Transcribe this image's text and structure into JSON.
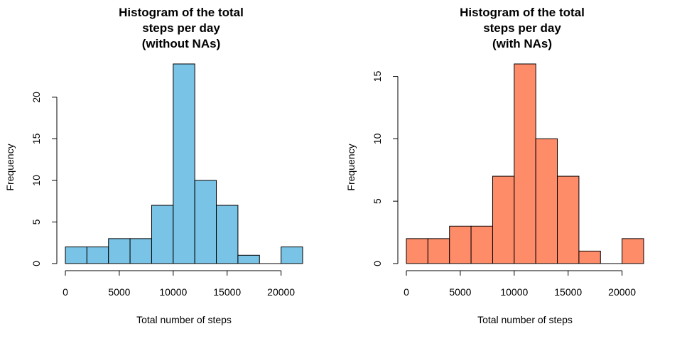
{
  "chart_data": [
    {
      "type": "bar",
      "subtype": "histogram",
      "title_lines": [
        "Histogram of the total",
        "steps per day",
        "(without NAs)"
      ],
      "xlabel": "Total number of steps",
      "ylabel": "Frequency",
      "bin_edges": [
        0,
        2000,
        4000,
        6000,
        8000,
        10000,
        12000,
        14000,
        16000,
        18000,
        20000,
        22000
      ],
      "values": [
        2,
        2,
        3,
        3,
        7,
        24,
        10,
        7,
        1,
        0,
        2
      ],
      "xlim": [
        0,
        22000
      ],
      "ylim": [
        0,
        24
      ],
      "xticks": [
        0,
        5000,
        10000,
        15000,
        20000
      ],
      "xtick_labels": [
        "0",
        "5000",
        "10000",
        "15000",
        "20000"
      ],
      "yticks": [
        0,
        5,
        10,
        15,
        20
      ],
      "ytick_labels": [
        "0",
        "5",
        "10",
        "15",
        "20"
      ],
      "fill_color": "#78C3E6",
      "edge_color": "#000000",
      "grid": false
    },
    {
      "type": "bar",
      "subtype": "histogram",
      "title_lines": [
        "Histogram of the total",
        "steps per day",
        "(with NAs)"
      ],
      "xlabel": "Total number of steps",
      "ylabel": "Frequency",
      "bin_edges": [
        0,
        2000,
        4000,
        6000,
        8000,
        10000,
        12000,
        14000,
        16000,
        18000,
        20000,
        22000
      ],
      "values": [
        2,
        2,
        3,
        3,
        7,
        16,
        10,
        7,
        1,
        0,
        2
      ],
      "xlim": [
        0,
        22000
      ],
      "ylim": [
        0,
        16
      ],
      "xticks": [
        0,
        5000,
        10000,
        15000,
        20000
      ],
      "xtick_labels": [
        "0",
        "5000",
        "10000",
        "15000",
        "20000"
      ],
      "yticks": [
        0,
        5,
        10,
        15
      ],
      "ytick_labels": [
        "0",
        "5",
        "10",
        "15"
      ],
      "fill_color": "#FF8C69",
      "edge_color": "#000000",
      "grid": false
    }
  ]
}
